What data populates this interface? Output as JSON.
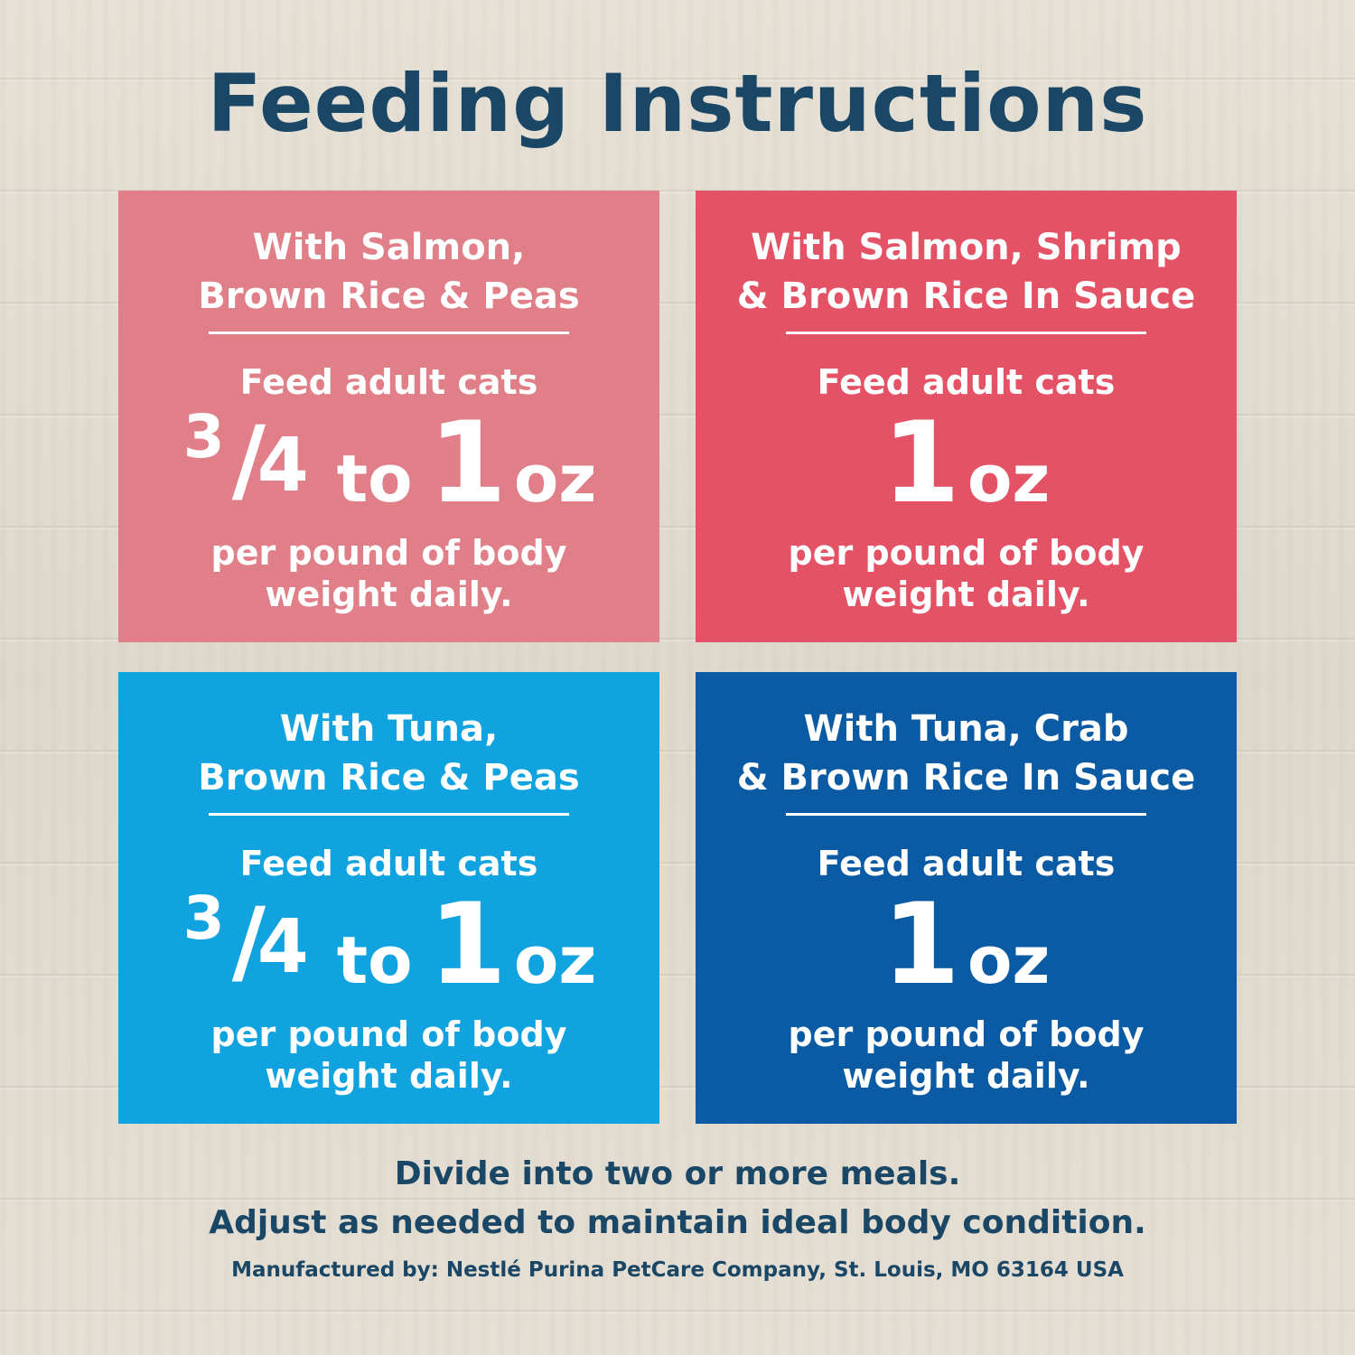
{
  "title": "Feeding Instructions",
  "colors": {
    "heading": "#1b4766",
    "card_salmon_peas": "#e07f88",
    "card_salmon_shrimp": "#e35365",
    "card_tuna_peas": "#11a3df",
    "card_tuna_crab": "#0a5aa4",
    "text_on_card": "#ffffff"
  },
  "cards": [
    {
      "name_line1": "With Salmon,",
      "name_line2": "Brown Rice & Peas",
      "lead": "Feed adult cats",
      "amount_fraction_num": "3",
      "amount_fraction_slash": "/",
      "amount_fraction_den": "4",
      "amount_to": "to",
      "amount_number": "1",
      "amount_unit": "oz",
      "per_line1": "per pound of body",
      "per_line2": "weight daily."
    },
    {
      "name_line1": "With Salmon, Shrimp",
      "name_line2": "& Brown Rice In Sauce",
      "lead": "Feed adult cats",
      "amount_number": "1",
      "amount_unit": "oz",
      "per_line1": "per pound of body",
      "per_line2": "weight daily."
    },
    {
      "name_line1": "With Tuna,",
      "name_line2": "Brown Rice & Peas",
      "lead": "Feed adult cats",
      "amount_fraction_num": "3",
      "amount_fraction_slash": "/",
      "amount_fraction_den": "4",
      "amount_to": "to",
      "amount_number": "1",
      "amount_unit": "oz",
      "per_line1": "per pound of body",
      "per_line2": "weight daily."
    },
    {
      "name_line1": "With Tuna, Crab",
      "name_line2": "& Brown Rice In Sauce",
      "lead": "Feed adult cats",
      "amount_number": "1",
      "amount_unit": "oz",
      "per_line1": "per pound of body",
      "per_line2": "weight daily."
    }
  ],
  "footer": {
    "line1": "Divide into two or more meals.",
    "line2": "Adjust as needed to maintain ideal body condition.",
    "manufacturer": "Manufactured by: Nestlé Purina PetCare Company, St. Louis, MO 63164 USA"
  }
}
